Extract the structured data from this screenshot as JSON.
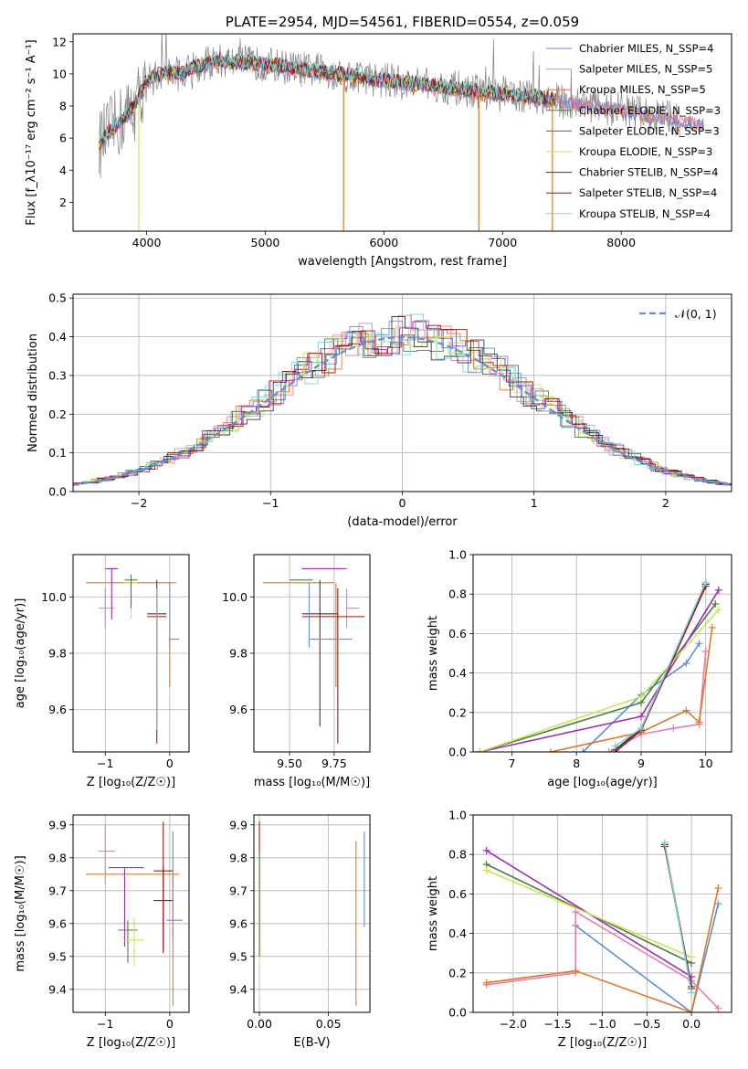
{
  "series_colors": {
    "chabrier_miles": "#5f8fd6",
    "salpeter_miles": "#e37fb1",
    "kroupa_miles": "#d97a2b",
    "chabrier_elodie": "#4f7d48",
    "salpeter_elodie": "#9b2fae",
    "kroupa_elodie": "#c7e657",
    "chabrier_stelib": "#3a3a3a",
    "salpeter_stelib": "#a11414",
    "kroupa_stelib": "#7dd3d8"
  },
  "chart_data": [
    {
      "id": "spectrum",
      "type": "line",
      "title": "PLATE=2954, MJD=54561, FIBERID=0554, z=0.059",
      "xlabel": "wavelength [Angstrom, rest frame]",
      "ylabel": "Flux [f_λ10⁻¹⁷ erg cm⁻² s⁻¹ A⁻¹]",
      "xlim": [
        3380,
        8930
      ],
      "ylim": [
        0.2,
        12.5
      ],
      "xticks": [
        "4000",
        "5000",
        "6000",
        "7000",
        "8000"
      ],
      "yticks": [
        "2",
        "4",
        "6",
        "8",
        "10",
        "12"
      ],
      "grid": false,
      "legend_position": "top-right",
      "legend": [
        {
          "label": "Chabrier MILES, N_SSP=4",
          "color": "#5f8fd6"
        },
        {
          "label": "Salpeter MILES, N_SSP=5",
          "color": "#e37fb1"
        },
        {
          "label": "Kroupa MILES, N_SSP=5",
          "color": "#d97a2b"
        },
        {
          "label": "Chabrier ELODIE, N_SSP=3",
          "color": "#4f7d48"
        },
        {
          "label": "Salpeter ELODIE, N_SSP=3",
          "color": "#9b2fae"
        },
        {
          "label": "Kroupa ELODIE, N_SSP=3",
          "color": "#c7e657"
        },
        {
          "label": "Chabrier STELIB, N_SSP=4",
          "color": "#3a3a3a"
        },
        {
          "label": "Salpeter STELIB, N_SSP=4",
          "color": "#a11414"
        },
        {
          "label": "Kroupa STELIB, N_SSP=4",
          "color": "#7dd3d8"
        }
      ],
      "data_color": "#808080",
      "continuum": {
        "x": [
          3600,
          3700,
          3800,
          3900,
          4000,
          4100,
          4200,
          4300,
          4400,
          4500,
          4600,
          4800,
          5000,
          5200,
          5400,
          5600,
          5800,
          6000,
          6200,
          6400,
          6600,
          6800,
          7000,
          7200,
          7400,
          7600,
          7800,
          8000,
          8200,
          8400,
          8500,
          8700
        ],
        "y": [
          5.6,
          6.5,
          7.2,
          8.0,
          9.6,
          9.9,
          10.1,
          10.0,
          10.4,
          10.6,
          10.8,
          10.7,
          10.6,
          10.4,
          10.2,
          10.0,
          9.8,
          9.6,
          9.4,
          9.3,
          9.1,
          8.9,
          8.7,
          8.6,
          8.4,
          8.2,
          8.0,
          7.8,
          7.5,
          7.3,
          7.1,
          6.9
        ]
      },
      "dips": [
        {
          "x": 3934,
          "y": 0.2
        },
        {
          "x": 5660,
          "y": 0.2
        },
        {
          "x": 6800,
          "y": 0.2
        },
        {
          "x": 7420,
          "y": 0.2
        }
      ]
    },
    {
      "id": "residuals",
      "type": "bar",
      "xlabel": "(data-model)/error",
      "ylabel": "Normed distribution",
      "xlim": [
        -2.5,
        2.5
      ],
      "ylim": [
        0,
        0.51
      ],
      "xticks": [
        "−2",
        "−1",
        "0",
        "1",
        "2"
      ],
      "yticks": [
        "0.0",
        "0.1",
        "0.2",
        "0.3",
        "0.4",
        "0.5"
      ],
      "grid": true,
      "legend_position": "top-right",
      "legend": [
        {
          "label": "𝒩(0, 1)",
          "color": "#5f8fd6"
        }
      ],
      "model": {
        "name": "𝒩(0, 1)",
        "mean": 0,
        "sigma": 1
      }
    },
    {
      "id": "age_vs_z",
      "type": "scatter",
      "xlabel": "Z [log₁₀(Z/Z☉)]",
      "ylabel": "age  [log₁₀(age/yr)]",
      "xlim": [
        -1.5,
        0.3
      ],
      "ylim": [
        9.45,
        10.15
      ],
      "xticks": [
        "−1",
        "0"
      ],
      "yticks": [
        "9.6",
        "9.8",
        "10.0"
      ],
      "grid": true,
      "errorbars": [
        {
          "series": "kroupa_miles",
          "x": -0.3,
          "y": 10.05,
          "xerr": [
            1.0,
            0.4
          ],
          "yerr": [
            0.0,
            0.0
          ]
        },
        {
          "series": "salpeter_miles",
          "x": -1.0,
          "y": 9.96,
          "xerr": [
            0.1,
            0.15
          ],
          "yerr": [
            0.07,
            0.07
          ]
        },
        {
          "series": "salpeter_elodie",
          "x": -0.9,
          "y": 10.1,
          "xerr": [
            0.1,
            0.1
          ],
          "yerr": [
            0.18,
            0.0
          ]
        },
        {
          "series": "kroupa_elodie",
          "x": -0.6,
          "y": 10.05,
          "xerr": [
            0.1,
            0.1
          ],
          "yerr": [
            0.13,
            0.03
          ]
        },
        {
          "series": "chabrier_elodie",
          "x": -0.6,
          "y": 10.06,
          "xerr": [
            0.1,
            0.1
          ],
          "yerr": [
            0.1,
            0.02
          ]
        },
        {
          "series": "chabrier_stelib",
          "x": -0.2,
          "y": 9.94,
          "xerr": [
            0.15,
            0.15
          ],
          "yerr": [
            0.4,
            0.12
          ]
        },
        {
          "series": "salpeter_stelib",
          "x": -0.2,
          "y": 9.93,
          "xerr": [
            0.15,
            0.15
          ],
          "yerr": [
            0.45,
            0.1
          ]
        },
        {
          "series": "kroupa_stelib",
          "x": -0.2,
          "y": 9.93,
          "xerr": [
            0.0,
            0.0
          ],
          "yerr": [
            0.4,
            0.1
          ]
        },
        {
          "series": "chabrier_miles",
          "x": 0.0,
          "y": 9.85,
          "xerr": [
            0.0,
            0.15
          ],
          "yerr": [
            0.03,
            0.2
          ]
        },
        {
          "series": "kroupa_miles",
          "x": 0.0,
          "y": 9.85,
          "xerr": [
            0.0,
            0.0
          ],
          "yerr": [
            0.17,
            0.0
          ]
        }
      ]
    },
    {
      "id": "age_vs_mass",
      "type": "scatter",
      "xlabel": "mass [log₁₀(M/M☉)]",
      "ylabel": "",
      "xlim": [
        9.3,
        9.95
      ],
      "ylim": [
        9.45,
        10.15
      ],
      "xticks": [
        "9.50",
        "9.75"
      ],
      "yticks": [
        "9.6",
        "9.8",
        "10.0"
      ],
      "grid": true,
      "errorbars": [
        {
          "series": "kroupa_miles",
          "x": 9.62,
          "y": 10.05,
          "xerr": [
            0.27,
            0.13
          ],
          "yerr": [
            0.0,
            0.0
          ]
        },
        {
          "series": "salpeter_elodie",
          "x": 9.77,
          "y": 10.1,
          "xerr": [
            0.2,
            0.05
          ],
          "yerr": [
            0.0,
            0.0
          ]
        },
        {
          "series": "chabrier_elodie",
          "x": 9.58,
          "y": 10.06,
          "xerr": [
            0.08,
            0.05
          ],
          "yerr": [
            0.0,
            0.0
          ]
        },
        {
          "series": "salpeter_miles",
          "x": 9.82,
          "y": 9.96,
          "xerr": [
            0.0,
            0.07
          ],
          "yerr": [
            0.07,
            0.07
          ]
        },
        {
          "series": "chabrier_stelib",
          "x": 9.67,
          "y": 9.94,
          "xerr": [
            0.1,
            0.1
          ],
          "yerr": [
            0.4,
            0.12
          ]
        },
        {
          "series": "salpeter_stelib",
          "x": 9.77,
          "y": 9.93,
          "xerr": [
            0.2,
            0.15
          ],
          "yerr": [
            0.45,
            0.1
          ]
        },
        {
          "series": "chabrier_miles",
          "x": 9.61,
          "y": 9.85,
          "xerr": [
            0.0,
            0.24
          ],
          "yerr": [
            0.03,
            0.2
          ]
        },
        {
          "series": "kroupa_miles",
          "x": 9.76,
          "y": 9.85,
          "xerr": [
            0.0,
            0.0
          ],
          "yerr": [
            0.17,
            0.2
          ]
        }
      ]
    },
    {
      "id": "weight_vs_age",
      "type": "line",
      "xlabel": "age  [log₁₀(age/yr)]",
      "ylabel": "mass weight",
      "xlim": [
        6.4,
        10.4
      ],
      "ylim": [
        0,
        1.0
      ],
      "xticks": [
        "7",
        "8",
        "9",
        "10"
      ],
      "yticks": [
        "0.0",
        "0.2",
        "0.4",
        "0.6",
        "0.8",
        "1.0"
      ],
      "grid": true,
      "series": [
        {
          "key": "chabrier_miles",
          "x": [
            8.1,
            9.0,
            9.7,
            9.9
          ],
          "y": [
            0.0,
            0.29,
            0.45,
            0.55
          ]
        },
        {
          "key": "salpeter_miles",
          "x": [
            8.5,
            9.0,
            9.5,
            9.9,
            10.0
          ],
          "y": [
            0.0,
            0.09,
            0.12,
            0.14,
            0.51
          ]
        },
        {
          "key": "kroupa_miles",
          "x": [
            7.6,
            9.0,
            9.7,
            9.9,
            10.1
          ],
          "y": [
            0.0,
            0.1,
            0.21,
            0.15,
            0.63
          ]
        },
        {
          "key": "chabrier_elodie",
          "x": [
            6.5,
            9.0,
            10.15
          ],
          "y": [
            0.0,
            0.25,
            0.75
          ]
        },
        {
          "key": "salpeter_elodie",
          "x": [
            6.5,
            9.0,
            10.2
          ],
          "y": [
            0.0,
            0.18,
            0.82
          ]
        },
        {
          "key": "kroupa_elodie",
          "x": [
            6.5,
            9.0,
            10.2
          ],
          "y": [
            0.0,
            0.28,
            0.72
          ]
        },
        {
          "key": "chabrier_stelib",
          "x": [
            8.6,
            9.0,
            10.0
          ],
          "y": [
            0.01,
            0.12,
            0.85
          ]
        },
        {
          "key": "salpeter_stelib",
          "x": [
            8.6,
            9.0,
            10.0
          ],
          "y": [
            0.0,
            0.11,
            0.84
          ]
        },
        {
          "key": "kroupa_stelib",
          "x": [
            8.6,
            9.0,
            10.0
          ],
          "y": [
            0.03,
            0.12,
            0.86
          ]
        }
      ]
    },
    {
      "id": "mass_vs_z",
      "type": "scatter",
      "xlabel": "Z [log₁₀(Z/Z☉)]",
      "ylabel": "mass [log₁₀(M/M☉)]",
      "xlim": [
        -1.5,
        0.3
      ],
      "ylim": [
        9.33,
        9.93
      ],
      "xticks": [
        "−1",
        "0"
      ],
      "yticks": [
        "9.4",
        "9.5",
        "9.6",
        "9.7",
        "9.8",
        "9.9"
      ],
      "grid": true,
      "errorbars": [
        {
          "series": "kroupa_miles",
          "x": -0.3,
          "y": 9.75,
          "xerr": [
            1.0,
            0.45
          ],
          "yerr": [
            0.0,
            0.0
          ]
        },
        {
          "series": "salpeter_miles",
          "x": -1.0,
          "y": 9.82,
          "xerr": [
            0.1,
            0.15
          ],
          "yerr": [
            0.1,
            0.08
          ]
        },
        {
          "series": "salpeter_elodie",
          "x": -0.7,
          "y": 9.77,
          "xerr": [
            0.25,
            0.3
          ],
          "yerr": [
            0.24,
            0.0
          ]
        },
        {
          "series": "chabrier_elodie",
          "x": -0.65,
          "y": 9.58,
          "xerr": [
            0.15,
            0.15
          ],
          "yerr": [
            0.1,
            0.03
          ]
        },
        {
          "series": "kroupa_elodie",
          "x": -0.55,
          "y": 9.55,
          "xerr": [
            0.15,
            0.15
          ],
          "yerr": [
            0.08,
            0.07
          ]
        },
        {
          "series": "chabrier_stelib",
          "x": -0.1,
          "y": 9.67,
          "xerr": [
            0.15,
            0.15
          ],
          "yerr": [
            0.15,
            0.1
          ]
        },
        {
          "series": "salpeter_stelib",
          "x": -0.1,
          "y": 9.76,
          "xerr": [
            0.15,
            0.15
          ],
          "yerr": [
            0.25,
            0.15
          ]
        },
        {
          "series": "chabrier_miles",
          "x": 0.05,
          "y": 9.61,
          "xerr": [
            0.1,
            0.15
          ],
          "yerr": [
            0.05,
            0.27
          ]
        },
        {
          "series": "kroupa_miles",
          "x": 0.05,
          "y": 9.6,
          "xerr": [
            0.0,
            0.0
          ],
          "yerr": [
            0.25,
            0.15
          ]
        }
      ]
    },
    {
      "id": "mass_vs_ebv",
      "type": "scatter",
      "xlabel": "E(B-V)",
      "ylabel": "",
      "xlim": [
        -0.004,
        0.08
      ],
      "ylim": [
        9.33,
        9.93
      ],
      "xticks": [
        "0.00",
        "0.05"
      ],
      "yticks": [
        "9.4",
        "9.5",
        "9.6",
        "9.7",
        "9.8",
        "9.9"
      ],
      "grid": true,
      "errorbars": [
        {
          "series": "salpeter_stelib",
          "x": 0.0,
          "y": 9.72,
          "xerr": [
            0.0,
            0.0
          ],
          "yerr": [
            0.22,
            0.19
          ]
        },
        {
          "series": "kroupa_elodie",
          "x": 0.0,
          "y": 9.55,
          "xerr": [
            0.0,
            0.0
          ],
          "yerr": [
            0.08,
            0.1
          ]
        },
        {
          "series": "chabrier_elodie",
          "x": 0.0,
          "y": 9.62,
          "xerr": [
            0.0,
            0.0
          ],
          "yerr": [
            0.12,
            0.2
          ]
        },
        {
          "series": "kroupa_miles",
          "x": 0.07,
          "y": 9.6,
          "xerr": [
            0.0,
            0.0
          ],
          "yerr": [
            0.25,
            0.25
          ]
        },
        {
          "series": "chabrier_miles",
          "x": 0.076,
          "y": 9.74,
          "xerr": [
            0.0,
            0.0
          ],
          "yerr": [
            0.15,
            0.14
          ]
        }
      ]
    },
    {
      "id": "weight_vs_z",
      "type": "line",
      "xlabel": "Z [log₁₀(Z/Z☉)]",
      "ylabel": "mass weight",
      "xlim": [
        -2.45,
        0.45
      ],
      "ylim": [
        0,
        1.0
      ],
      "xticks": [
        "−2.0",
        "−1.5",
        "−1.0",
        "−0.5",
        "0.0"
      ],
      "yticks": [
        "0.0",
        "0.2",
        "0.4",
        "0.6",
        "0.8",
        "1.0"
      ],
      "grid": true,
      "series": [
        {
          "key": "chabrier_miles",
          "x": [
            -1.3,
            0.0,
            0.3
          ],
          "y": [
            0.44,
            0.0,
            0.55
          ]
        },
        {
          "key": "salpeter_miles",
          "x": [
            -2.3,
            -1.3,
            -1.3,
            0.0,
            0.3
          ],
          "y": [
            0.14,
            0.2,
            0.51,
            0.16,
            0.02
          ]
        },
        {
          "key": "kroupa_miles",
          "x": [
            -2.3,
            -1.3,
            0.0,
            0.3
          ],
          "y": [
            0.15,
            0.21,
            0.0,
            0.63
          ]
        },
        {
          "key": "chabrier_elodie",
          "x": [
            -2.3,
            0.0
          ],
          "y": [
            0.75,
            0.25
          ]
        },
        {
          "key": "salpeter_elodie",
          "x": [
            -2.3,
            0.0
          ],
          "y": [
            0.82,
            0.18
          ]
        },
        {
          "key": "kroupa_elodie",
          "x": [
            -2.3,
            0.0
          ],
          "y": [
            0.72,
            0.28
          ]
        },
        {
          "key": "chabrier_stelib",
          "x": [
            -0.3,
            0.0
          ],
          "y": [
            0.85,
            0.13
          ]
        },
        {
          "key": "salpeter_stelib",
          "x": [
            -0.3,
            0.0
          ],
          "y": [
            0.84,
            0.12
          ]
        },
        {
          "key": "kroupa_stelib",
          "x": [
            -0.3,
            0.0
          ],
          "y": [
            0.86,
            0.1
          ]
        }
      ]
    }
  ]
}
